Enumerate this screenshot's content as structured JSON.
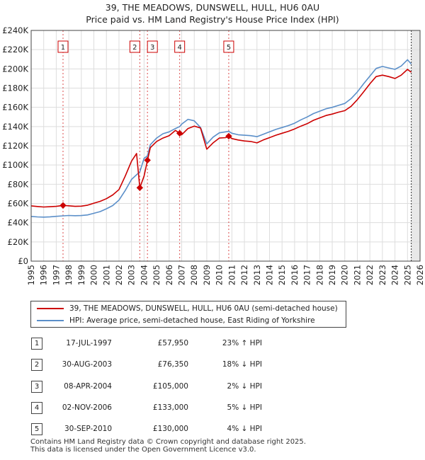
{
  "title_line1": "39, THE MEADOWS, DUNSWELL, HULL, HU6 0AU",
  "title_line2": "Price paid vs. HM Land Registry's House Price Index (HPI)",
  "chart_data": {
    "type": "line",
    "title": "Price paid vs. HM Land Registry's House Price Index (HPI)",
    "xlim": [
      1995,
      2026
    ],
    "ylim": [
      0,
      240000
    ],
    "x_ticks": [
      1995,
      1996,
      1997,
      1998,
      1999,
      2000,
      2001,
      2002,
      2003,
      2004,
      2005,
      2006,
      2007,
      2008,
      2009,
      2010,
      2011,
      2012,
      2013,
      2014,
      2015,
      2016,
      2017,
      2018,
      2019,
      2020,
      2021,
      2022,
      2023,
      2024,
      2025,
      2026
    ],
    "y_ticks": [
      {
        "value": 0,
        "label": "£0"
      },
      {
        "value": 20000,
        "label": "£20K"
      },
      {
        "value": 40000,
        "label": "£40K"
      },
      {
        "value": 60000,
        "label": "£60K"
      },
      {
        "value": 80000,
        "label": "£80K"
      },
      {
        "value": 100000,
        "label": "£100K"
      },
      {
        "value": 120000,
        "label": "£120K"
      },
      {
        "value": 140000,
        "label": "£140K"
      },
      {
        "value": 160000,
        "label": "£160K"
      },
      {
        "value": 180000,
        "label": "£180K"
      },
      {
        "value": 200000,
        "label": "£200K"
      },
      {
        "value": 220000,
        "label": "£220K"
      },
      {
        "value": 240000,
        "label": "£240K"
      }
    ],
    "future_shade_from": 2025.3,
    "series": [
      {
        "name": "39, THE MEADOWS, DUNSWELL, HULL, HU6 0AU (semi-detached house)",
        "color": "#cc0000",
        "points": [
          [
            1995.0,
            57500
          ],
          [
            1995.5,
            56800
          ],
          [
            1996.0,
            56300
          ],
          [
            1996.5,
            56600
          ],
          [
            1997.0,
            57000
          ],
          [
            1997.54,
            57950
          ],
          [
            1998.0,
            57600
          ],
          [
            1998.5,
            57000
          ],
          [
            1999.0,
            57200
          ],
          [
            1999.5,
            58200
          ],
          [
            2000.0,
            60300
          ],
          [
            2000.5,
            62200
          ],
          [
            2001.0,
            65000
          ],
          [
            2001.5,
            68800
          ],
          [
            2002.0,
            74500
          ],
          [
            2002.5,
            88500
          ],
          [
            2003.0,
            104000
          ],
          [
            2003.4,
            112000
          ],
          [
            2003.66,
            76350
          ],
          [
            2004.0,
            88500
          ],
          [
            2004.27,
            105000
          ],
          [
            2004.5,
            118000
          ],
          [
            2005.0,
            124500
          ],
          [
            2005.5,
            128000
          ],
          [
            2006.0,
            130500
          ],
          [
            2006.5,
            136000
          ],
          [
            2006.84,
            133000
          ],
          [
            2007.0,
            131500
          ],
          [
            2007.5,
            138000
          ],
          [
            2008.0,
            140500
          ],
          [
            2008.5,
            138500
          ],
          [
            2009.0,
            116500
          ],
          [
            2009.5,
            123000
          ],
          [
            2010.0,
            128000
          ],
          [
            2010.5,
            128500
          ],
          [
            2010.75,
            130000
          ],
          [
            2011.0,
            127500
          ],
          [
            2011.5,
            126000
          ],
          [
            2012.0,
            125000
          ],
          [
            2012.5,
            124500
          ],
          [
            2013.0,
            123000
          ],
          [
            2013.5,
            126000
          ],
          [
            2014.0,
            128500
          ],
          [
            2014.5,
            131000
          ],
          [
            2015.0,
            133000
          ],
          [
            2015.5,
            135000
          ],
          [
            2016.0,
            137500
          ],
          [
            2016.5,
            140500
          ],
          [
            2017.0,
            143000
          ],
          [
            2017.5,
            146500
          ],
          [
            2018.0,
            149000
          ],
          [
            2018.5,
            151500
          ],
          [
            2019.0,
            153000
          ],
          [
            2019.5,
            155000
          ],
          [
            2020.0,
            156500
          ],
          [
            2020.5,
            161000
          ],
          [
            2021.0,
            168000
          ],
          [
            2021.5,
            176000
          ],
          [
            2022.0,
            184500
          ],
          [
            2022.5,
            192000
          ],
          [
            2023.0,
            193500
          ],
          [
            2023.5,
            192000
          ],
          [
            2024.0,
            190000
          ],
          [
            2024.5,
            193500
          ],
          [
            2025.0,
            199500
          ],
          [
            2025.3,
            196500
          ]
        ]
      },
      {
        "name": "HPI: Average price, semi-detached house, East Riding of Yorkshire",
        "color": "#5b8fc9",
        "points": [
          [
            1995.0,
            46500
          ],
          [
            1995.5,
            46000
          ],
          [
            1996.0,
            45800
          ],
          [
            1996.5,
            46100
          ],
          [
            1997.0,
            46600
          ],
          [
            1997.54,
            47100
          ],
          [
            1998.0,
            47500
          ],
          [
            1998.5,
            47300
          ],
          [
            1999.0,
            47400
          ],
          [
            1999.5,
            48100
          ],
          [
            2000.0,
            49800
          ],
          [
            2000.5,
            51500
          ],
          [
            2001.0,
            54500
          ],
          [
            2001.5,
            57800
          ],
          [
            2002.0,
            63500
          ],
          [
            2002.5,
            73500
          ],
          [
            2003.0,
            85000
          ],
          [
            2003.66,
            93000
          ],
          [
            2004.0,
            107000
          ],
          [
            2004.27,
            109500
          ],
          [
            2004.5,
            121000
          ],
          [
            2005.0,
            128000
          ],
          [
            2005.5,
            132500
          ],
          [
            2006.0,
            134500
          ],
          [
            2006.5,
            138000
          ],
          [
            2006.84,
            140000
          ],
          [
            2007.0,
            142500
          ],
          [
            2007.5,
            147500
          ],
          [
            2008.0,
            146000
          ],
          [
            2008.5,
            139000
          ],
          [
            2009.0,
            122000
          ],
          [
            2009.5,
            129000
          ],
          [
            2010.0,
            133500
          ],
          [
            2010.5,
            134500
          ],
          [
            2010.75,
            135000
          ],
          [
            2011.0,
            133000
          ],
          [
            2011.5,
            131500
          ],
          [
            2012.0,
            131000
          ],
          [
            2012.5,
            130500
          ],
          [
            2013.0,
            129500
          ],
          [
            2013.5,
            132000
          ],
          [
            2014.0,
            134500
          ],
          [
            2014.5,
            137000
          ],
          [
            2015.0,
            139000
          ],
          [
            2015.5,
            141000
          ],
          [
            2016.0,
            143500
          ],
          [
            2016.5,
            147000
          ],
          [
            2017.0,
            150000
          ],
          [
            2017.5,
            153500
          ],
          [
            2018.0,
            156000
          ],
          [
            2018.5,
            158500
          ],
          [
            2019.0,
            160000
          ],
          [
            2019.5,
            162000
          ],
          [
            2020.0,
            164000
          ],
          [
            2020.5,
            169000
          ],
          [
            2021.0,
            176000
          ],
          [
            2021.5,
            184500
          ],
          [
            2022.0,
            192500
          ],
          [
            2022.5,
            200500
          ],
          [
            2023.0,
            202500
          ],
          [
            2023.5,
            201000
          ],
          [
            2024.0,
            199500
          ],
          [
            2024.5,
            203000
          ],
          [
            2025.0,
            209500
          ],
          [
            2025.3,
            205000
          ]
        ]
      }
    ],
    "sales": [
      {
        "n": "1",
        "x": 1997.54,
        "price": 57950
      },
      {
        "n": "2",
        "x": 2003.66,
        "price": 76350
      },
      {
        "n": "3",
        "x": 2004.27,
        "price": 105000
      },
      {
        "n": "4",
        "x": 2006.84,
        "price": 133000
      },
      {
        "n": "5",
        "x": 2010.75,
        "price": 130000
      }
    ]
  },
  "legend": {
    "series1": "39, THE MEADOWS, DUNSWELL, HULL, HU6 0AU (semi-detached house)",
    "series2": "HPI: Average price, semi-detached house, East Riding of Yorkshire",
    "series1_color": "#cc0000",
    "series2_color": "#5b8fc9"
  },
  "transactions": [
    {
      "n": "1",
      "date": "17-JUL-1997",
      "price": "£57,950",
      "hpi": "23% ↑ HPI"
    },
    {
      "n": "2",
      "date": "30-AUG-2003",
      "price": "£76,350",
      "hpi": "18% ↓ HPI"
    },
    {
      "n": "3",
      "date": "08-APR-2004",
      "price": "£105,000",
      "hpi": "2% ↓ HPI"
    },
    {
      "n": "4",
      "date": "02-NOV-2006",
      "price": "£133,000",
      "hpi": "5% ↓ HPI"
    },
    {
      "n": "5",
      "date": "30-SEP-2010",
      "price": "£130,000",
      "hpi": "4% ↓ HPI"
    }
  ],
  "footer": {
    "line1": "Contains HM Land Registry data © Crown copyright and database right 2025.",
    "line2": "This data is licensed under the Open Government Licence v3.0."
  }
}
